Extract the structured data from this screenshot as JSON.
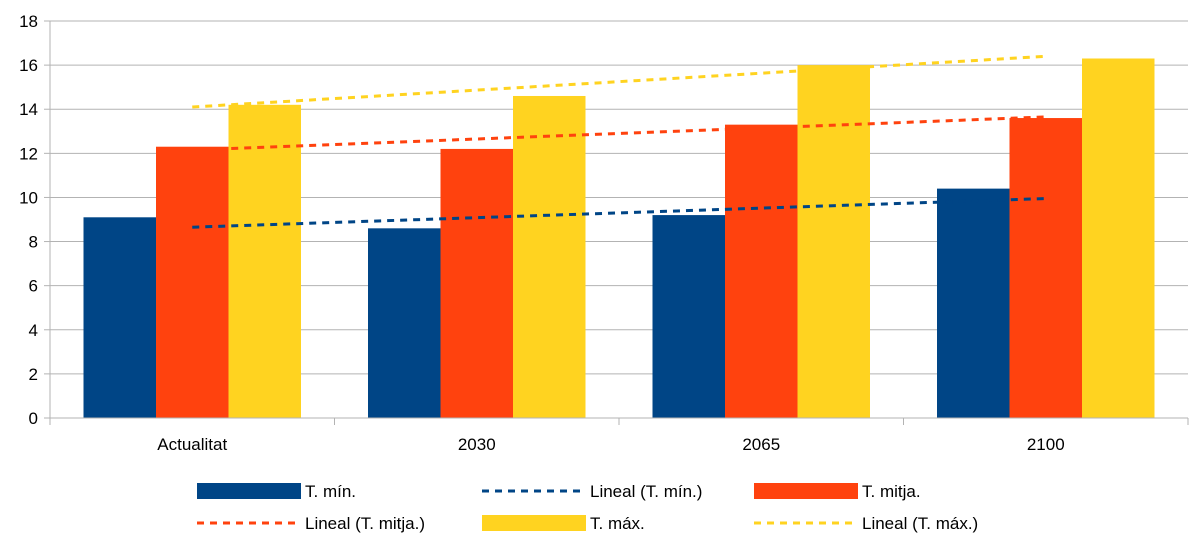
{
  "chart_data": {
    "type": "bar",
    "categories": [
      "Actualitat",
      "2030",
      "2065",
      "2100"
    ],
    "series": [
      {
        "name": "T. mín.",
        "values": [
          9.1,
          8.6,
          9.2,
          10.4
        ],
        "color": "#004586"
      },
      {
        "name": "T. mitja.",
        "values": [
          12.3,
          12.2,
          13.3,
          13.6
        ],
        "color": "#FF420E"
      },
      {
        "name": "T. máx.",
        "values": [
          14.2,
          14.6,
          16.0,
          16.3
        ],
        "color": "#FFD320"
      }
    ],
    "trendlines": [
      {
        "name": "Lineal (T. mín.)",
        "start": 8.65,
        "end": 9.95,
        "color": "#004586"
      },
      {
        "name": "Lineal (T. mitja.)",
        "start": 12.15,
        "end": 13.65,
        "color": "#FF420E"
      },
      {
        "name": "Lineal (T. máx.)",
        "start": 14.1,
        "end": 16.4,
        "color": "#FFD320"
      }
    ],
    "ylim": [
      0,
      18
    ],
    "yticks": [
      0,
      2,
      4,
      6,
      8,
      10,
      12,
      14,
      16,
      18
    ],
    "grid": true,
    "legend_position": "bottom",
    "legend_order": [
      "T. mín.",
      "Lineal (T. mín.)",
      "T. mitja.",
      "Lineal (T. mitja.)",
      "T. máx.",
      "Lineal (T. máx.)"
    ]
  }
}
